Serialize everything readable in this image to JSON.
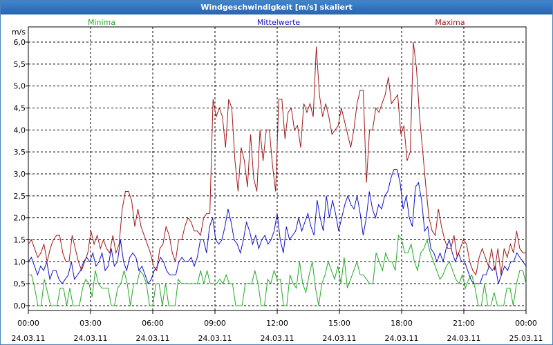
{
  "window": {
    "title": "Windgeschwindigkeit [m/s] skaliert"
  },
  "chart_data": {
    "type": "line",
    "title": "Windgeschwindigkeit [m/s] skaliert",
    "ylabel": "m/s",
    "ylim": [
      0,
      6.0
    ],
    "yticks": [
      "0,0",
      "0,5",
      "1,0",
      "1,5",
      "2,0",
      "2,5",
      "3,0",
      "3,5",
      "4,0",
      "4,5",
      "5,0",
      "5,5",
      "6,0"
    ],
    "xticks": [
      {
        "time": "00:00",
        "date": "24.03.11"
      },
      {
        "time": "03:00",
        "date": "24.03.11"
      },
      {
        "time": "06:00",
        "date": "24.03.11"
      },
      {
        "time": "09:00",
        "date": "24.03.11"
      },
      {
        "time": "12:00",
        "date": "24.03.11"
      },
      {
        "time": "15:00",
        "date": "24.03.11"
      },
      {
        "time": "18:00",
        "date": "24.03.11"
      },
      {
        "time": "21:00",
        "date": "24.03.11"
      },
      {
        "time": "00:00",
        "date": "25.03.11"
      }
    ],
    "grid": true,
    "colors": {
      "Minima": "#22aa22",
      "Mittelwerte": "#1010cc",
      "Maxima": "#a01818"
    },
    "series": [
      {
        "name": "Minima",
        "color": "#22aa22",
        "values": [
          0.7,
          0.7,
          0.4,
          0.0,
          0.0,
          0.6,
          0.3,
          0.0,
          0.0,
          0.0,
          0.4,
          0.4,
          0.0,
          0.4,
          0.0,
          0.0,
          0.0,
          0.4,
          0.6,
          0.5,
          0.2,
          0.8,
          0.5,
          0.4,
          0.4,
          0.4,
          0.0,
          0.0,
          0.4,
          0.5,
          0.8,
          0.5,
          0.0,
          0.5,
          0.5,
          0.8,
          0.7,
          0.5,
          0.0,
          0.0,
          0.5,
          0.5,
          0.0,
          0.5,
          0.0,
          0.0,
          0.0,
          0.6,
          0.5,
          0.5,
          0.5,
          0.5,
          0.5,
          0.5,
          0.8,
          0.5,
          0.8,
          0.5,
          0.5,
          0.5,
          0.6,
          0.5,
          0.7,
          0.5,
          0.5,
          0.0,
          0.0,
          0.0,
          0.5,
          0.5,
          0.5,
          0.8,
          0.5,
          0.0,
          0.0,
          0.6,
          0.5,
          0.8,
          0.6,
          0.6,
          0.0,
          0.0,
          0.7,
          0.5,
          0.4,
          1.0,
          0.5,
          0.3,
          0.7,
          1.0,
          0.4,
          0.0,
          0.5,
          0.7,
          1.0,
          0.8,
          0.6,
          0.9,
          0.5,
          1.1,
          0.4,
          0.6,
          0.8,
          1.0,
          0.7,
          0.7,
          0.6,
          0.5,
          0.5,
          1.2,
          1.0,
          0.8,
          1.2,
          1.0,
          1.0,
          0.8,
          1.6,
          1.5,
          1.2,
          1.2,
          1.4,
          1.0,
          0.8,
          1.2,
          1.3,
          1.5,
          1.2,
          1.0,
          0.8,
          0.6,
          0.7,
          0.9,
          1.0,
          0.8,
          0.6,
          0.5,
          0.7,
          0.4,
          0.6,
          0.7,
          0.4,
          0.0,
          0.0,
          0.5,
          0.0,
          0.0,
          0.3,
          0.0,
          0.0,
          0.0,
          0.4,
          0.4,
          0.0,
          0.5,
          0.8,
          0.8,
          0.5
        ]
      },
      {
        "name": "Mittelwerte",
        "color": "#1010cc",
        "values": [
          1.0,
          1.1,
          0.9,
          0.7,
          0.9,
          0.8,
          1.0,
          0.6,
          0.8,
          0.8,
          0.6,
          0.5,
          0.6,
          0.7,
          1.0,
          0.6,
          0.7,
          0.8,
          1.0,
          1.1,
          1.0,
          1.2,
          0.9,
          1.0,
          1.2,
          0.8,
          0.9,
          1.3,
          0.9,
          1.0,
          1.5,
          1.0,
          0.8,
          1.1,
          1.2,
          1.1,
          0.8,
          0.9,
          0.7,
          0.5,
          0.6,
          0.8,
          0.9,
          1.1,
          1.0,
          0.8,
          0.7,
          0.7,
          0.7,
          1.0,
          1.1,
          1.0,
          1.0,
          1.1,
          0.9,
          1.1,
          1.5,
          1.5,
          1.2,
          1.8,
          2.0,
          1.5,
          1.4,
          1.5,
          1.8,
          2.2,
          1.9,
          1.5,
          1.4,
          1.2,
          1.5,
          1.9,
          1.7,
          1.4,
          1.6,
          1.3,
          1.5,
          1.6,
          1.4,
          1.5,
          1.7,
          2.1,
          1.5,
          1.2,
          1.8,
          1.5,
          1.6,
          1.7,
          2.0,
          1.7,
          1.9,
          2.1,
          1.8,
          1.6,
          2.4,
          2.0,
          1.7,
          2.5,
          2.0,
          2.4,
          2.1,
          1.7,
          2.0,
          2.3,
          2.5,
          2.3,
          2.2,
          2.5,
          2.1,
          1.6,
          2.0,
          2.6,
          2.2,
          2.0,
          2.3,
          2.2,
          2.5,
          2.6,
          2.9,
          3.1,
          3.1,
          2.8,
          2.2,
          2.5,
          2.0,
          1.8,
          2.7,
          2.8,
          2.4,
          1.7,
          1.8,
          1.3,
          1.2,
          1.0,
          1.2,
          1.0,
          1.3,
          1.5,
          1.2,
          1.0,
          1.2,
          1.0,
          1.0,
          0.8,
          0.6,
          0.5,
          0.5,
          0.5,
          0.7,
          0.7,
          0.9,
          0.8,
          0.9,
          0.5,
          0.7,
          0.9,
          0.8,
          1.0,
          1.0,
          1.2,
          1.1,
          1.0,
          0.9
        ]
      },
      {
        "name": "Maxima",
        "color": "#a01818",
        "values": [
          1.4,
          1.5,
          1.3,
          1.1,
          1.2,
          1.4,
          1.0,
          1.3,
          1.5,
          1.6,
          1.6,
          1.2,
          1.0,
          1.0,
          1.6,
          1.3,
          1.0,
          0.8,
          1.0,
          1.2,
          1.7,
          1.4,
          1.6,
          1.3,
          1.5,
          1.3,
          1.2,
          1.6,
          1.2,
          1.4,
          2.2,
          2.6,
          2.6,
          2.4,
          1.8,
          2.2,
          1.8,
          1.6,
          1.4,
          1.2,
          0.9,
          0.8,
          1.3,
          1.4,
          1.8,
          1.6,
          1.2,
          1.0,
          1.5,
          1.5,
          1.8,
          2.0,
          1.9,
          1.7,
          1.7,
          1.6,
          2.0,
          2.1,
          2.1,
          4.7,
          4.3,
          4.5,
          4.3,
          3.6,
          4.7,
          4.5,
          3.3,
          2.6,
          3.6,
          3.3,
          2.7,
          3.9,
          2.9,
          2.6,
          4.0,
          3.3,
          4.0,
          4.0,
          3.2,
          2.6,
          4.7,
          4.7,
          3.8,
          4.4,
          4.5,
          4.0,
          4.1,
          3.6,
          4.6,
          4.4,
          4.6,
          4.3,
          5.9,
          4.8,
          4.3,
          4.6,
          4.3,
          3.9,
          4.0,
          4.1,
          4.5,
          4.2,
          3.9,
          3.6,
          4.0,
          4.6,
          4.9,
          4.9,
          2.8,
          4.0,
          4.0,
          4.5,
          4.4,
          4.6,
          4.8,
          5.2,
          4.6,
          4.7,
          4.8,
          3.9,
          4.1,
          3.3,
          3.5,
          6.0,
          5.4,
          4.3,
          3.5,
          2.7,
          2.0,
          1.7,
          1.6,
          2.2,
          1.8,
          1.5,
          1.3,
          1.3,
          1.6,
          1.1,
          1.3,
          1.5,
          1.4,
          1.0,
          0.8,
          0.7,
          1.1,
          1.3,
          1.1,
          0.9,
          1.3,
          0.8,
          1.3,
          0.7,
          1.3,
          1.1,
          1.4,
          1.2,
          1.7,
          1.3,
          1.2,
          1.2
        ]
      }
    ]
  }
}
